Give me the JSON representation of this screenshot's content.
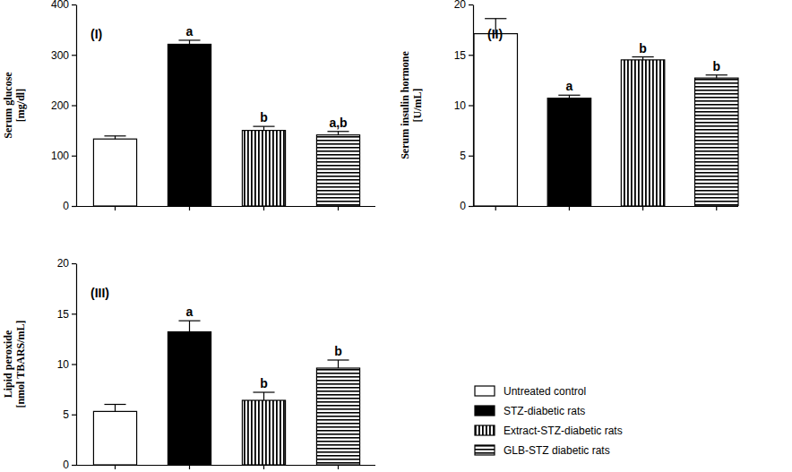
{
  "chart_data": [
    {
      "type": "bar",
      "title": "(I)",
      "y_label": [
        "Serum glucose",
        "[mg/dl]"
      ],
      "categories": [
        "Untreated control",
        "STZ-diabetic rats",
        "Extract-STZ-diabetic rats",
        "GLB-STZ diabetic rats"
      ],
      "values": [
        133,
        321,
        150,
        141
      ],
      "errors": [
        6,
        8,
        8,
        7
      ],
      "annotations": [
        null,
        "a",
        "b",
        "a,b"
      ],
      "ylim": [
        0,
        400
      ],
      "yticks": [
        0,
        100,
        200,
        300,
        400
      ],
      "tick_labels": "y"
    },
    {
      "type": "bar",
      "title": "(II)",
      "y_label": [
        "Serum insulin hormone",
        "[U/mL]"
      ],
      "categories": [
        "Untreated control",
        "STZ-diabetic rats",
        "Extract-STZ-diabetic rats",
        "GLB-STZ diabetic rats"
      ],
      "values": [
        17.1,
        10.7,
        14.5,
        12.7
      ],
      "errors": [
        1.5,
        0.3,
        0.3,
        0.3
      ],
      "annotations": [
        null,
        "a",
        "b",
        "b"
      ],
      "ylim": [
        0,
        20
      ],
      "yticks": [
        0,
        5,
        10,
        15,
        20
      ],
      "tick_labels": "y"
    },
    {
      "type": "bar",
      "title": "(III)",
      "y_label": [
        "Lipid peroxide",
        "[nmol TBARS/mL]"
      ],
      "categories": [
        "Untreated control",
        "STZ-diabetic rats",
        "Extract-STZ-diabetic rats",
        "GLB-STZ diabetic rats"
      ],
      "values": [
        5.3,
        13.2,
        6.4,
        9.6
      ],
      "errors": [
        0.7,
        1.1,
        0.8,
        0.8
      ],
      "annotations": [
        null,
        "a",
        "b",
        "b"
      ],
      "ylim": [
        0,
        20
      ],
      "yticks": [
        0,
        5,
        10,
        15,
        20
      ],
      "tick_labels": "y",
      "legend": "right"
    }
  ]
}
